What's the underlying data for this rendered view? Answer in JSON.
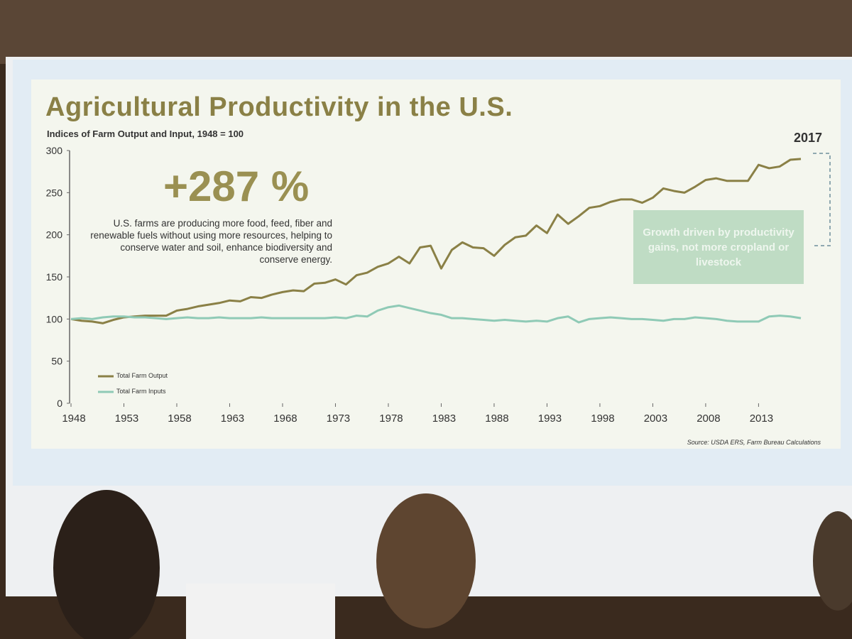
{
  "chart_data": {
    "type": "line",
    "title": "Agricultural Productivity in the U.S.",
    "subtitle": "Indices of Farm Output and Input, 1948 = 100",
    "annotation": "+287 %",
    "note": "U.S. farms are producing more food, feed, fiber and renewable fuels without using more resources, helping to conserve water and soil, enhance biodiversity and conserve energy.",
    "highlight": "2017",
    "callout": "Growth driven by productivity gains, not more cropland or livestock",
    "source": "Source: USDA ERS, Farm Bureau Calculations",
    "x": [
      1948,
      1949,
      1950,
      1951,
      1952,
      1953,
      1954,
      1955,
      1956,
      1957,
      1958,
      1959,
      1960,
      1961,
      1962,
      1963,
      1964,
      1965,
      1966,
      1967,
      1968,
      1969,
      1970,
      1971,
      1972,
      1973,
      1974,
      1975,
      1976,
      1977,
      1978,
      1979,
      1980,
      1981,
      1982,
      1983,
      1984,
      1985,
      1986,
      1987,
      1988,
      1989,
      1990,
      1991,
      1992,
      1993,
      1994,
      1995,
      1996,
      1997,
      1998,
      1999,
      2000,
      2001,
      2002,
      2003,
      2004,
      2005,
      2006,
      2007,
      2008,
      2009,
      2010,
      2011,
      2012,
      2013,
      2014,
      2015,
      2016,
      2017
    ],
    "xlim": [
      1948,
      2017
    ],
    "xticks": [
      1948,
      1953,
      1958,
      1963,
      1968,
      1973,
      1978,
      1983,
      1988,
      1993,
      1998,
      2003,
      2008,
      2013
    ],
    "ylim": [
      0,
      300
    ],
    "yticks": [
      0,
      50,
      100,
      150,
      200,
      250,
      300
    ],
    "legend": "lower left",
    "series": [
      {
        "name": "Total Farm Output",
        "color": "#8a8046",
        "values": [
          100,
          98,
          97,
          95,
          99,
          102,
          103,
          104,
          104,
          104,
          110,
          112,
          115,
          117,
          119,
          122,
          121,
          126,
          125,
          129,
          132,
          134,
          133,
          142,
          143,
          147,
          141,
          152,
          155,
          162,
          166,
          174,
          166,
          185,
          187,
          160,
          182,
          191,
          185,
          184,
          175,
          188,
          197,
          199,
          211,
          202,
          224,
          213,
          222,
          232,
          234,
          239,
          242,
          242,
          238,
          244,
          255,
          252,
          250,
          257,
          265,
          267,
          264,
          264,
          264,
          283,
          279,
          281,
          289,
          290
        ]
      },
      {
        "name": "Total Farm Inputs",
        "color": "#8fcab6",
        "values": [
          100,
          101,
          100,
          102,
          103,
          103,
          102,
          102,
          101,
          100,
          101,
          102,
          101,
          101,
          102,
          101,
          101,
          101,
          102,
          101,
          101,
          101,
          101,
          101,
          101,
          102,
          101,
          104,
          103,
          110,
          114,
          116,
          113,
          110,
          107,
          105,
          101,
          101,
          100,
          99,
          98,
          99,
          98,
          97,
          98,
          97,
          101,
          103,
          96,
          100,
          101,
          102,
          101,
          100,
          100,
          99,
          98,
          100,
          100,
          102,
          101,
          100,
          98,
          97,
          97,
          97,
          103,
          104,
          103,
          101
        ]
      }
    ]
  }
}
